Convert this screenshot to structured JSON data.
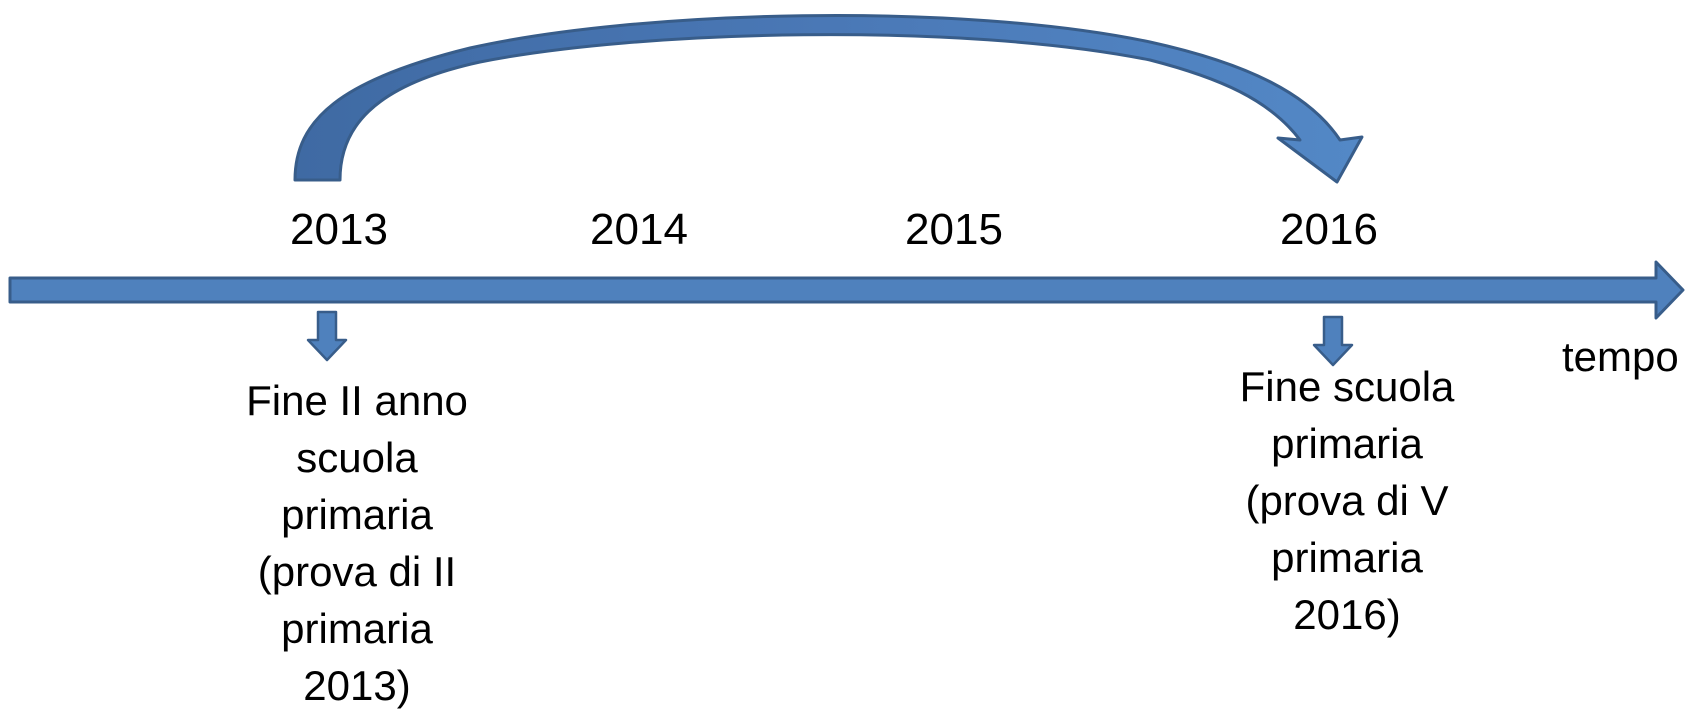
{
  "axis": {
    "label": "tempo"
  },
  "years": [
    "2013",
    "2014",
    "2015",
    "2016"
  ],
  "notes": {
    "start": "Fine II anno\nscuola\nprimaria\n(prova di II\nprimaria\n2013)",
    "end": "Fine scuola\nprimaria\n(prova di V\nprimaria\n2016)"
  },
  "colors": {
    "arrow_fill": "#4f81bd",
    "arrow_stroke": "#385d8a",
    "curve_fill": "#4a76b0",
    "text": "#000000"
  }
}
